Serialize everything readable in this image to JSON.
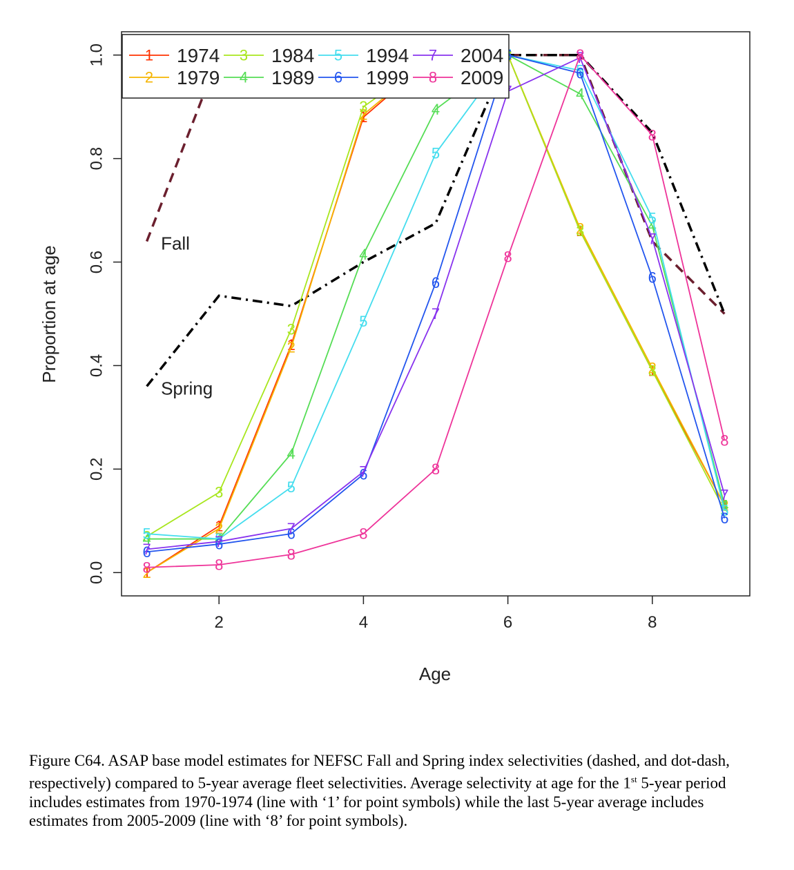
{
  "chart_data": {
    "type": "line",
    "xlabel": "Age",
    "ylabel": "Proportion at age",
    "xlim": [
      0.65,
      9.35
    ],
    "ylim": [
      -0.045,
      1.045
    ],
    "x_ticks": [
      "2",
      "4",
      "6",
      "8"
    ],
    "y_ticks": [
      "0.0",
      "0.2",
      "0.4",
      "0.6",
      "0.8",
      "1.0"
    ],
    "x": [
      1,
      2,
      3,
      4,
      5,
      6,
      7,
      8,
      9
    ],
    "series": [
      {
        "name": "1974",
        "marker": "1",
        "color": "#ff3300",
        "values": [
          0.0,
          0.09,
          0.44,
          0.88,
          1.0,
          1.0,
          0.66,
          0.39,
          0.13
        ]
      },
      {
        "name": "1979",
        "marker": "2",
        "color": "#f5b400",
        "values": [
          0.0,
          0.085,
          0.435,
          0.885,
          1.0,
          1.0,
          0.665,
          0.395,
          0.13
        ]
      },
      {
        "name": "1984",
        "marker": "3",
        "color": "#a8e61d",
        "values": [
          0.07,
          0.155,
          0.47,
          0.9,
          1.0,
          1.0,
          0.66,
          0.39,
          0.12
        ]
      },
      {
        "name": "1989",
        "marker": "4",
        "color": "#55dd55",
        "values": [
          0.065,
          0.065,
          0.23,
          0.615,
          0.895,
          1.0,
          0.925,
          0.67,
          0.13
        ]
      },
      {
        "name": "1994",
        "marker": "5",
        "color": "#44ddee",
        "values": [
          0.075,
          0.065,
          0.165,
          0.485,
          0.81,
          1.0,
          0.97,
          0.685,
          0.12
        ]
      },
      {
        "name": "1999",
        "marker": "6",
        "color": "#2255ee",
        "values": [
          0.04,
          0.055,
          0.075,
          0.19,
          0.56,
          1.0,
          0.965,
          0.57,
          0.105
        ]
      },
      {
        "name": "2004",
        "marker": "7",
        "color": "#8833ee",
        "values": [
          0.045,
          0.06,
          0.085,
          0.195,
          0.5,
          0.93,
          0.995,
          0.645,
          0.15
        ]
      },
      {
        "name": "2009",
        "marker": "8",
        "color": "#ee3399",
        "values": [
          0.01,
          0.015,
          0.035,
          0.075,
          0.2,
          0.61,
          1.0,
          0.845,
          0.255
        ]
      }
    ],
    "index_series": [
      {
        "name": "Fall",
        "style": "dashed",
        "color": "#6b1f2e",
        "values": [
          0.64,
          1.0,
          1.0,
          1.0,
          1.0,
          1.0,
          1.0,
          0.64,
          0.5
        ]
      },
      {
        "name": "Spring",
        "style": "dot-dash",
        "color": "#000000",
        "values": [
          0.36,
          0.535,
          0.515,
          0.6,
          0.675,
          1.0,
          1.0,
          0.85,
          0.5
        ]
      }
    ],
    "annotations": [
      {
        "text": "Fall",
        "x": 1.1,
        "y": 0.64
      },
      {
        "text": "Spring",
        "x": 1.1,
        "y": 0.36
      }
    ],
    "legend": {
      "placement": "top-left",
      "columns": 4
    },
    "grid": false
  },
  "caption": {
    "part1": "Figure C64.  ASAP base model estimates for NEFSC Fall and Spring index selectivities (dashed, and dot-dash, respectively) compared to 5-year average fleet selectivities.  Average selectivity at age for the 1",
    "sup": "st",
    "part2": " 5-year period includes estimates from 1970-1974 (line with ‘1’ for point symbols) while the last 5-year average includes estimates from 2005-2009 (line with ‘8’ for point symbols)."
  }
}
